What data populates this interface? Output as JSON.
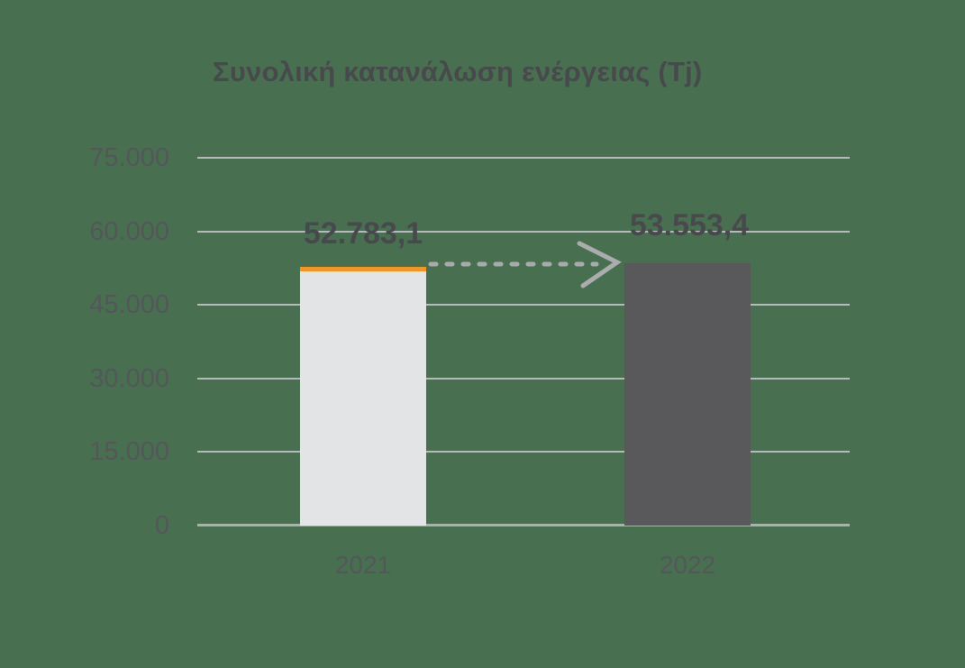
{
  "chart_data": {
    "type": "bar",
    "title": "Συνολική κατανάλωση ενέργειας (Tj)",
    "categories": [
      "2021",
      "2022"
    ],
    "series": [
      {
        "name": "Συνολική κατανάλωση ενέργειας (Tj)",
        "values": [
          52783.1,
          53553.4
        ]
      }
    ],
    "value_labels": [
      "52.783,1",
      "53.553,4"
    ],
    "ytick_labels": [
      "75.000",
      "60.000",
      "45.000",
      "30.000",
      "15.000",
      "0"
    ],
    "ytick_values": [
      75000,
      60000,
      45000,
      30000,
      15000,
      0
    ],
    "ylim": [
      0,
      75000
    ],
    "xlabel": "",
    "ylabel": "",
    "grid": "horizontal",
    "legend": "none",
    "annotation": {
      "type": "dashed-arrow",
      "from_category": "2021",
      "to_category": "2022",
      "meaning": "increase from 52.783,1 to 53.553,4"
    },
    "colors": {
      "bar_2021_fill": "#E3E4E6",
      "bar_2021_top_accent": "#F7941E",
      "bar_2022_fill": "#59595B",
      "gridline": "#B6BABC",
      "text_dark": "#48494C",
      "text_axis": "#54565A",
      "arrow": "#A9AAAC",
      "background": "#487050"
    }
  }
}
